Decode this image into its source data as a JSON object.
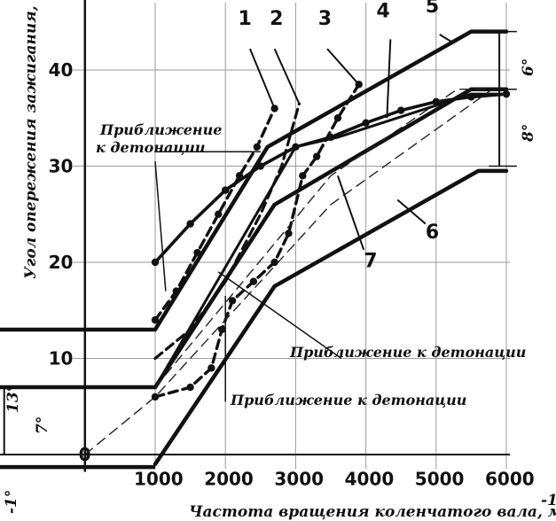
{
  "chart_data": {
    "type": "line",
    "title": "",
    "xlabel": "Частота вращения коленчатого вала, мин",
    "xlabel_sup": "-1",
    "ylabel": "Угол опережения зажигания, гр",
    "xlim": [
      -2000,
      6100
    ],
    "ylim": [
      -2,
      47
    ],
    "x_ticks": [
      "1000",
      "2000",
      "3000",
      "4000",
      "5000",
      "6000"
    ],
    "y_ticks": [
      "0",
      "10",
      "20",
      "30",
      "40"
    ],
    "grid": true,
    "series": [
      {
        "label": "1",
        "style": "dashed-markers",
        "points": [
          [
            1000,
            14
          ],
          [
            1300,
            17
          ],
          [
            1600,
            21
          ],
          [
            1900,
            25
          ],
          [
            2200,
            29
          ],
          [
            2450,
            32
          ],
          [
            2700,
            36
          ]
        ]
      },
      {
        "label": "2",
        "style": "dashed",
        "points": [
          [
            1000,
            10
          ],
          [
            1500,
            13
          ],
          [
            2000,
            18
          ],
          [
            2500,
            25
          ],
          [
            2800,
            30
          ],
          [
            3050,
            36.5
          ]
        ]
      },
      {
        "label": "3",
        "style": "dashed-markers",
        "points": [
          [
            1000,
            6
          ],
          [
            1500,
            7
          ],
          [
            1800,
            9
          ],
          [
            1950,
            13
          ],
          [
            2100,
            16
          ],
          [
            2400,
            18
          ],
          [
            2700,
            20
          ],
          [
            2900,
            23
          ],
          [
            3100,
            29
          ],
          [
            3300,
            31
          ],
          [
            3600,
            35
          ],
          [
            3900,
            38.5
          ]
        ]
      },
      {
        "label": "4",
        "style": "solid-markers",
        "points": [
          [
            1000,
            20
          ],
          [
            1500,
            24
          ],
          [
            2000,
            27.5
          ],
          [
            2500,
            30
          ],
          [
            3000,
            32
          ],
          [
            3500,
            33
          ],
          [
            4000,
            34.5
          ],
          [
            4500,
            35.8
          ],
          [
            5000,
            36.7
          ],
          [
            5500,
            37.2
          ],
          [
            6000,
            37.5
          ]
        ]
      },
      {
        "label": "5",
        "style": "solid-thick",
        "points": [
          [
            1000,
            13
          ],
          [
            2600,
            32
          ],
          [
            5500,
            44
          ],
          [
            6000,
            44
          ]
        ]
      },
      {
        "label": "6",
        "style": "solid-thick",
        "points": [
          [
            1000,
            -1
          ],
          [
            2700,
            17.5
          ],
          [
            5600,
            29.5
          ],
          [
            6000,
            29.5
          ]
        ]
      },
      {
        "label": "7",
        "style": "solid-thick",
        "points": [
          [
            1000,
            7
          ],
          [
            2700,
            26
          ],
          [
            5500,
            38
          ],
          [
            6000,
            38
          ]
        ]
      },
      {
        "label": "",
        "style": "solid",
        "points": [
          [
            1000,
            7
          ],
          [
            3000,
            32
          ],
          [
            3600,
            33
          ],
          [
            5500,
            37.5
          ],
          [
            6000,
            37.5
          ]
        ]
      },
      {
        "label": "",
        "style": "thin-dashed",
        "points": [
          [
            1000,
            7
          ],
          [
            3500,
            29
          ],
          [
            5300,
            38
          ],
          [
            6000,
            38
          ]
        ]
      },
      {
        "label": "",
        "style": "thin-dashed",
        "points": [
          [
            0,
            0
          ],
          [
            1000,
            6
          ],
          [
            3500,
            26
          ],
          [
            5800,
            38
          ]
        ]
      }
    ],
    "annotations": {
      "ann_top_line1": "Приближение",
      "ann_top_line2": "к детонации",
      "ann_mid": "Приближение к детонации",
      "ann_bot": "Приближение к детонации",
      "dim_13": "13°",
      "dim_7": "7°",
      "dim_6": "6°",
      "dim_8": "8°",
      "dim_neg1": "-1°"
    }
  }
}
